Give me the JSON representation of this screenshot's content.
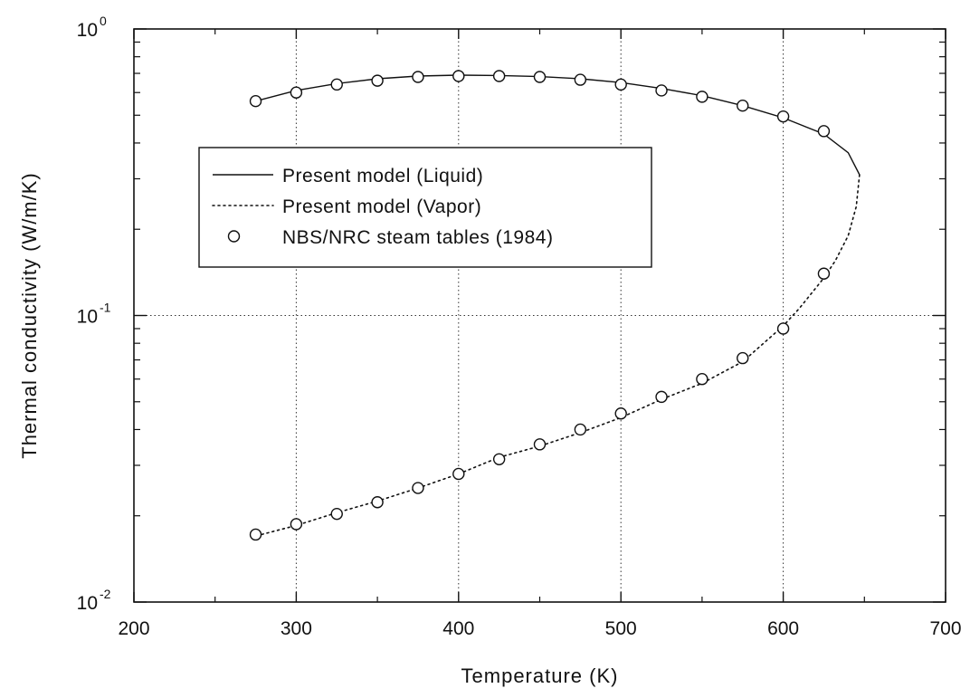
{
  "chart_data": {
    "type": "line",
    "title": "",
    "xlabel": "Temperature  (K)",
    "ylabel": "Thermal  conductivity  (W/m/K)",
    "xlim": [
      200,
      700
    ],
    "ylim": [
      0.01,
      1
    ],
    "yscale": "log",
    "grid": true,
    "legend_position": "center-left",
    "x_ticks": [
      200,
      300,
      400,
      500,
      600,
      700
    ],
    "x_tick_labels": [
      "200",
      "300",
      "400",
      "500",
      "600",
      "700"
    ],
    "y_ticks": [
      {
        "value": 0.01,
        "base": "10",
        "exp": "-2"
      },
      {
        "value": 0.1,
        "base": "10",
        "exp": "-1"
      },
      {
        "value": 1,
        "base": "10",
        "exp": "0"
      }
    ],
    "series": [
      {
        "name": "Present model (Liquid)",
        "style": "solid",
        "x": [
          275,
          300,
          325,
          350,
          375,
          400,
          425,
          450,
          475,
          500,
          525,
          550,
          575,
          600,
          625,
          640,
          647
        ],
        "y": [
          0.56,
          0.61,
          0.645,
          0.67,
          0.685,
          0.69,
          0.688,
          0.682,
          0.67,
          0.65,
          0.62,
          0.585,
          0.54,
          0.49,
          0.43,
          0.37,
          0.31
        ]
      },
      {
        "name": "Present model (Vapor)",
        "style": "dotted",
        "x": [
          647,
          645,
          640,
          632,
          625,
          610,
          600,
          575,
          550,
          525,
          500,
          475,
          450,
          425,
          400,
          375,
          350,
          325,
          300,
          275
        ],
        "y": [
          0.31,
          0.24,
          0.19,
          0.155,
          0.135,
          0.106,
          0.092,
          0.069,
          0.058,
          0.051,
          0.044,
          0.039,
          0.035,
          0.032,
          0.028,
          0.025,
          0.0225,
          0.0205,
          0.0185,
          0.017
        ]
      },
      {
        "name": "NBS/NRC steam tables (1984)",
        "style": "markers",
        "x": [
          275,
          300,
          325,
          350,
          375,
          400,
          425,
          450,
          475,
          500,
          525,
          550,
          575,
          600,
          625,
          275,
          300,
          325,
          350,
          375,
          400,
          425,
          450,
          475,
          500,
          525,
          550,
          575,
          600,
          625
        ],
        "y": [
          0.56,
          0.6,
          0.64,
          0.66,
          0.68,
          0.685,
          0.685,
          0.68,
          0.665,
          0.64,
          0.61,
          0.58,
          0.54,
          0.495,
          0.44,
          0.0172,
          0.0187,
          0.0203,
          0.0223,
          0.025,
          0.028,
          0.0315,
          0.0355,
          0.04,
          0.0455,
          0.052,
          0.06,
          0.071,
          0.09,
          0.14
        ]
      }
    ]
  }
}
